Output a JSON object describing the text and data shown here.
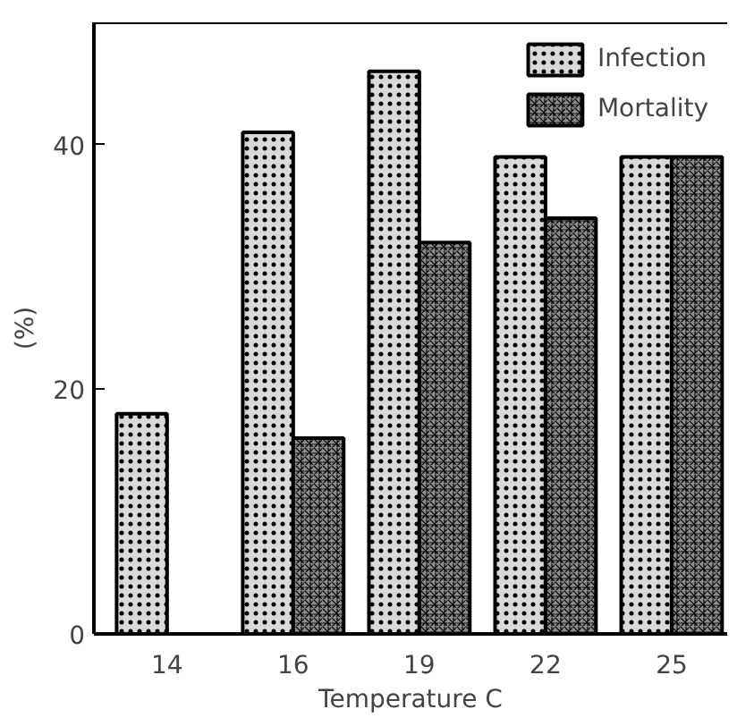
{
  "chart_data": {
    "type": "bar",
    "xlabel": "Temperature C",
    "ylabel": "(%)",
    "categories": [
      "14",
      "16",
      "19",
      "22",
      "25"
    ],
    "series": [
      {
        "name": "Infection",
        "color": "#d9d9d9",
        "values": [
          18,
          41,
          46,
          39,
          39
        ]
      },
      {
        "name": "Mortality",
        "color": "#8c8c8c",
        "values": [
          null,
          16,
          32,
          34,
          39
        ]
      }
    ],
    "ylim": [
      0,
      50
    ],
    "yticks": [
      0,
      20,
      40
    ],
    "grid": false,
    "legend": "top right"
  }
}
